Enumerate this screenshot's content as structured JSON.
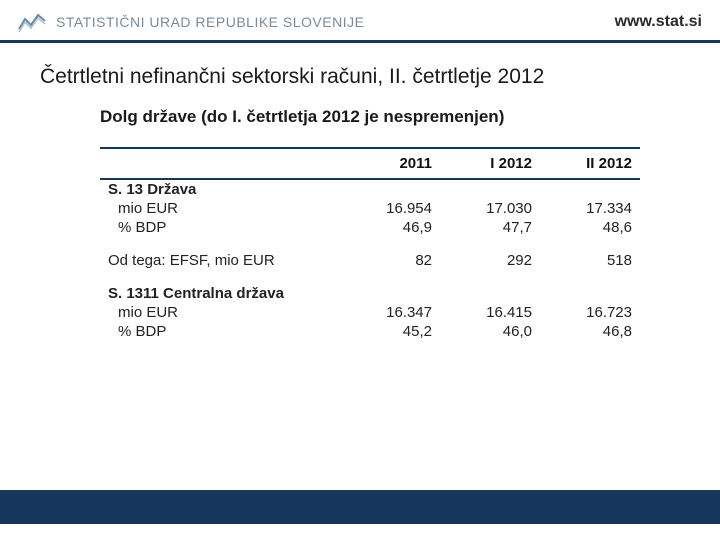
{
  "header": {
    "org_name": "STATISTIČNI URAD REPUBLIKE SLOVENIJE",
    "site_url": "www.stat.si",
    "logo_stroke": "#6a8aa8"
  },
  "title": "Četrtletni nefinančni sektorski računi, II. četrtletje 2012",
  "subtitle": "Dolg države (do I. četrtletja 2012 je nespremenjen)",
  "table": {
    "columns": [
      "",
      "2011",
      "I 2012",
      "II 2012"
    ],
    "column_widths": [
      "240px",
      "100px",
      "100px",
      "100px"
    ],
    "rows": [
      {
        "label": "S. 13 Država",
        "bold": true,
        "values": [
          "",
          "",
          ""
        ]
      },
      {
        "label": "mio EUR",
        "indent": true,
        "values": [
          "16.954",
          "17.030",
          "17.334"
        ]
      },
      {
        "label": "% BDP",
        "indent": true,
        "values": [
          "46,9",
          "47,7",
          "48,6"
        ]
      },
      {
        "spacer": true
      },
      {
        "label": "Od tega: EFSF, mio EUR",
        "values": [
          "82",
          "292",
          "518"
        ]
      },
      {
        "spacer": true
      },
      {
        "label": "S. 1311 Centralna država",
        "bold": true,
        "values": [
          "",
          "",
          ""
        ]
      },
      {
        "label": "mio EUR",
        "indent": true,
        "values": [
          "16.347",
          "16.415",
          "16.723"
        ]
      },
      {
        "label": "% BDP",
        "indent": true,
        "values": [
          "45,2",
          "46,0",
          "46,8"
        ]
      }
    ],
    "border_color": "#16365c"
  },
  "colors": {
    "rule": "#16365c",
    "footer": "#16365c",
    "text": "#1a1a1a",
    "muted": "#7a8a99"
  }
}
